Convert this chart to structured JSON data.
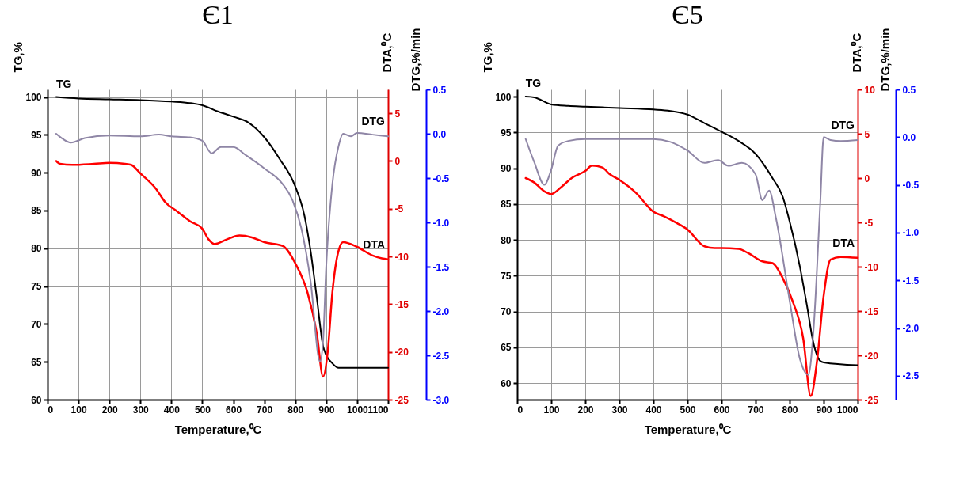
{
  "chart_data": [
    {
      "type": "line",
      "title": "Є1",
      "xlabel": "Temperature,⁰C",
      "ylabel": "TG,%",
      "y2label": "DTA,⁰C",
      "y3label": "DTG,%/min",
      "xlim": [
        0,
        1100
      ],
      "xticks": [
        0,
        100,
        200,
        300,
        400,
        500,
        600,
        700,
        800,
        900,
        1000,
        1100
      ],
      "ylim": [
        60,
        101
      ],
      "yticks": [
        60,
        65,
        70,
        75,
        80,
        85,
        90,
        95,
        100
      ],
      "y2lim": [
        -25,
        7.5
      ],
      "y2ticks": [
        -25,
        -20,
        -15,
        -10,
        -5,
        0,
        5
      ],
      "y3lim": [
        -3.0,
        0.5
      ],
      "y3ticks": [
        {
          "value": -3,
          "label": "-3.0"
        },
        {
          "value": -2.5,
          "label": "-2.5"
        },
        {
          "value": -2,
          "label": "-2.0"
        },
        {
          "value": -1.5,
          "label": "-1.5"
        },
        {
          "value": -1,
          "label": "-1.0"
        },
        {
          "value": -0.5,
          "label": "-0.5"
        },
        {
          "value": 0,
          "label": "0.0"
        },
        {
          "value": 0.5,
          "label": "0.5"
        }
      ],
      "grid": true,
      "series": [
        {
          "name": "TG",
          "color": "#000000",
          "axis": "y",
          "x": [
            28,
            100,
            200,
            300,
            400,
            460,
            500,
            550,
            600,
            650,
            700,
            750,
            800,
            830,
            850,
            870,
            890,
            900,
            920,
            940,
            1000,
            1100
          ],
          "values": [
            100.0,
            99.8,
            99.7,
            99.6,
            99.4,
            99.2,
            98.9,
            98.1,
            97.4,
            96.6,
            94.7,
            91.8,
            88.2,
            84.3,
            79.6,
            73.4,
            67.1,
            65.9,
            64.8,
            64.2,
            64.2,
            64.2
          ]
        },
        {
          "name": "DTA",
          "color": "#ff0000",
          "axis": "y2",
          "x": [
            28,
            40,
            80,
            150,
            200,
            250,
            270,
            300,
            350,
            380,
            420,
            460,
            500,
            520,
            540,
            580,
            620,
            660,
            700,
            760,
            800,
            840,
            870,
            890,
            905,
            920,
            940,
            955,
            1000,
            1050,
            1080,
            1100
          ],
          "values": [
            0.0,
            -0.3,
            -0.4,
            -0.3,
            -0.2,
            -0.3,
            -0.4,
            -1.3,
            -2.9,
            -4.3,
            -5.3,
            -6.3,
            -7.1,
            -8.2,
            -8.7,
            -8.2,
            -7.8,
            -8.0,
            -8.5,
            -8.9,
            -10.7,
            -13.8,
            -18.1,
            -22.6,
            -20.0,
            -13.8,
            -9.4,
            -8.5,
            -9.0,
            -9.9,
            -10.2,
            -10.3
          ]
        },
        {
          "name": "DTG",
          "color": "#8f86a6",
          "axis": "y3",
          "x": [
            28,
            50,
            75,
            120,
            200,
            300,
            360,
            400,
            460,
            500,
            530,
            560,
            600,
            640,
            700,
            760,
            790,
            820,
            850,
            880,
            890,
            900,
            920,
            940,
            955,
            980,
            1000,
            1050,
            1100
          ],
          "values": [
            0.0,
            -0.06,
            -0.1,
            -0.05,
            -0.02,
            -0.03,
            -0.01,
            -0.03,
            -0.04,
            -0.08,
            -0.22,
            -0.15,
            -0.15,
            -0.24,
            -0.39,
            -0.57,
            -0.74,
            -1.07,
            -1.67,
            -2.57,
            -2.34,
            -1.51,
            -0.57,
            -0.14,
            0.0,
            -0.03,
            0.01,
            -0.01,
            -0.03
          ]
        }
      ]
    },
    {
      "type": "line",
      "title": "Є5",
      "xlabel": "Temperature,⁰C",
      "ylabel": "TG,%",
      "y2label": "DTA,⁰C",
      "y3label": "DTG,%/min",
      "xlim": [
        0,
        1000
      ],
      "xticks": [
        0,
        100,
        200,
        300,
        400,
        500,
        600,
        700,
        800,
        900,
        1000
      ],
      "ylim": [
        57.7,
        101
      ],
      "yticks": [
        60,
        65,
        70,
        75,
        80,
        85,
        90,
        95,
        100
      ],
      "y2lim": [
        -25,
        10
      ],
      "y2ticks": [
        -25,
        -20,
        -15,
        -10,
        -5,
        0,
        5,
        10
      ],
      "y3lim": [
        -2.75,
        0.5
      ],
      "y3ticks": [
        {
          "value": -2.5,
          "label": "-2.5"
        },
        {
          "value": -2,
          "label": "-2.0"
        },
        {
          "value": -1.5,
          "label": "-1.5"
        },
        {
          "value": -1,
          "label": "-1.0"
        },
        {
          "value": -0.5,
          "label": "-0.5"
        },
        {
          "value": 0,
          "label": "0.0"
        },
        {
          "value": 0.5,
          "label": "0.5"
        }
      ],
      "grid": true,
      "series": [
        {
          "name": "TG",
          "color": "#000000",
          "axis": "y",
          "x": [
            25,
            50,
            100,
            150,
            200,
            300,
            400,
            450,
            500,
            550,
            600,
            650,
            700,
            750,
            780,
            800,
            830,
            850,
            870,
            890,
            900,
            1000
          ],
          "values": [
            100.0,
            99.9,
            98.9,
            98.7,
            98.6,
            98.4,
            98.2,
            98.0,
            97.5,
            96.3,
            95.1,
            93.8,
            92.0,
            88.6,
            86.0,
            82.6,
            76.3,
            71.1,
            65.6,
            63.1,
            62.9,
            62.5
          ]
        },
        {
          "name": "DTA",
          "color": "#ff0000",
          "axis": "y2",
          "x": [
            25,
            50,
            80,
            100,
            130,
            160,
            200,
            220,
            250,
            270,
            300,
            350,
            400,
            430,
            470,
            500,
            550,
            580,
            600,
            650,
            680,
            720,
            750,
            780,
            810,
            840,
            862,
            880,
            900,
            920,
            950,
            1000
          ],
          "values": [
            0.0,
            -0.5,
            -1.5,
            -1.8,
            -1.0,
            0.0,
            0.8,
            1.4,
            1.2,
            0.5,
            -0.2,
            -1.7,
            -3.8,
            -4.3,
            -5.1,
            -5.8,
            -7.7,
            -7.9,
            -7.9,
            -8.0,
            -8.5,
            -9.4,
            -9.6,
            -11.3,
            -14.0,
            -18.1,
            -24.6,
            -20.8,
            -13.3,
            -9.2,
            -8.9,
            -9.0
          ]
        },
        {
          "name": "DTG",
          "color": "#8f86a6",
          "axis": "y3",
          "x": [
            25,
            50,
            80,
            100,
            120,
            150,
            200,
            300,
            400,
            450,
            500,
            550,
            590,
            620,
            660,
            700,
            720,
            740,
            760,
            800,
            830,
            855,
            870,
            890,
            900,
            920,
            950,
            1000
          ],
          "values": [
            -0.02,
            -0.26,
            -0.5,
            -0.34,
            -0.09,
            -0.04,
            -0.02,
            -0.02,
            -0.02,
            -0.05,
            -0.14,
            -0.27,
            -0.24,
            -0.3,
            -0.27,
            -0.39,
            -0.66,
            -0.56,
            -0.85,
            -1.71,
            -2.32,
            -2.49,
            -2.03,
            -0.69,
            0.0,
            -0.03,
            -0.04,
            -0.03
          ]
        }
      ]
    }
  ]
}
